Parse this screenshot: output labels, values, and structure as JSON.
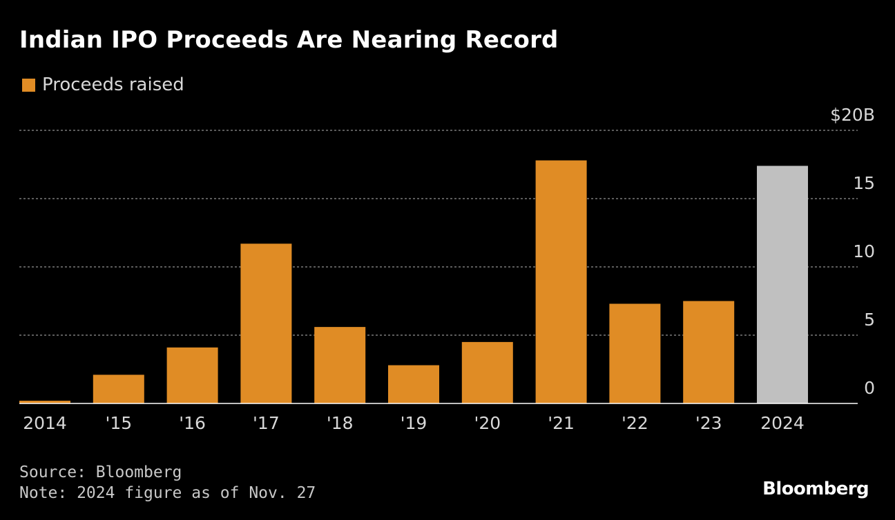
{
  "title": "Indian IPO Proceeds Are Nearing Record",
  "legend": {
    "label": "Proceeds raised",
    "color": "#e08c25"
  },
  "source": "Source: Bloomberg",
  "note": "Note: 2024 figure as of Nov. 27",
  "brand": "Bloomberg",
  "chart_data": {
    "type": "bar",
    "title": "Indian IPO Proceeds Are Nearing Record",
    "xlabel": "",
    "ylabel": "",
    "ylim": [
      0,
      20
    ],
    "categories": [
      "2014",
      "'15",
      "'16",
      "'17",
      "'18",
      "'19",
      "'20",
      "'21",
      "'22",
      "'23",
      "2024"
    ],
    "values": [
      0.2,
      2.1,
      4.1,
      11.7,
      5.6,
      2.8,
      4.5,
      17.8,
      7.3,
      7.5,
      17.4
    ],
    "bar_colors": [
      "#e08c25",
      "#e08c25",
      "#e08c25",
      "#e08c25",
      "#e08c25",
      "#e08c25",
      "#e08c25",
      "#e08c25",
      "#e08c25",
      "#e08c25",
      "#c0c0c0"
    ],
    "y_ticks": [
      0,
      5,
      10,
      15,
      20
    ],
    "y_tick_labels": [
      "0",
      "5",
      "10",
      "15",
      "$20B"
    ],
    "grid": true,
    "gridline_color": "#7a7a7a",
    "axis_color": "#ffffff"
  }
}
